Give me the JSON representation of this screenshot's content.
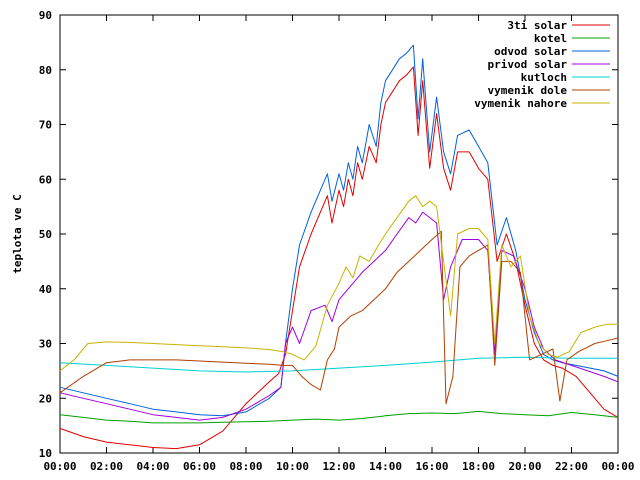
{
  "chart_data": {
    "type": "line",
    "title": "",
    "xlabel": "",
    "ylabel": "teplota ve C",
    "xlim": [
      0,
      24
    ],
    "ylim": [
      10,
      90
    ],
    "grid": false,
    "legend_position": "top-right",
    "x_ticks": [
      "00:00",
      "02:00",
      "04:00",
      "06:00",
      "08:00",
      "10:00",
      "12:00",
      "14:00",
      "16:00",
      "18:00",
      "20:00",
      "22:00",
      "00:00"
    ],
    "y_ticks": [
      10,
      20,
      30,
      40,
      50,
      60,
      70,
      80,
      90
    ],
    "series": [
      {
        "name": "3ti solar",
        "color": "#e00000",
        "points": [
          [
            0,
            14.5
          ],
          [
            1,
            13
          ],
          [
            2,
            12
          ],
          [
            3,
            11.5
          ],
          [
            4,
            11
          ],
          [
            5,
            10.8
          ],
          [
            6,
            11.5
          ],
          [
            7,
            14
          ],
          [
            8,
            19
          ],
          [
            9,
            23
          ],
          [
            9.4,
            24.5
          ],
          [
            9.7,
            28
          ],
          [
            10,
            36
          ],
          [
            10.3,
            44
          ],
          [
            10.8,
            50
          ],
          [
            11.2,
            54
          ],
          [
            11.5,
            57
          ],
          [
            11.7,
            52
          ],
          [
            12,
            58
          ],
          [
            12.2,
            55
          ],
          [
            12.4,
            60
          ],
          [
            12.6,
            57
          ],
          [
            12.8,
            63
          ],
          [
            13,
            60
          ],
          [
            13.3,
            66
          ],
          [
            13.6,
            63
          ],
          [
            13.8,
            70
          ],
          [
            14,
            74
          ],
          [
            14.3,
            76
          ],
          [
            14.6,
            78
          ],
          [
            14.9,
            79
          ],
          [
            15.2,
            80.5
          ],
          [
            15.4,
            68
          ],
          [
            15.6,
            78
          ],
          [
            15.9,
            62
          ],
          [
            16.2,
            72
          ],
          [
            16.5,
            62
          ],
          [
            16.8,
            58
          ],
          [
            17.1,
            65
          ],
          [
            17.6,
            65
          ],
          [
            18,
            62
          ],
          [
            18.4,
            60
          ],
          [
            18.8,
            45
          ],
          [
            19.2,
            50
          ],
          [
            19.6,
            45
          ],
          [
            20,
            37
          ],
          [
            20.4,
            30
          ],
          [
            20.8,
            27
          ],
          [
            21.2,
            26
          ],
          [
            21.6,
            25.5
          ],
          [
            22.2,
            24
          ],
          [
            22.8,
            21
          ],
          [
            23.4,
            18
          ],
          [
            24,
            16.5
          ]
        ]
      },
      {
        "name": "kotel",
        "color": "#00a000",
        "points": [
          [
            0,
            17
          ],
          [
            1,
            16.5
          ],
          [
            2,
            16
          ],
          [
            3,
            15.8
          ],
          [
            4,
            15.5
          ],
          [
            5,
            15.5
          ],
          [
            6,
            15.5
          ],
          [
            7,
            15.6
          ],
          [
            8,
            15.7
          ],
          [
            9,
            15.8
          ],
          [
            10,
            16
          ],
          [
            11,
            16.2
          ],
          [
            12,
            16
          ],
          [
            13,
            16.3
          ],
          [
            14,
            16.8
          ],
          [
            15,
            17.2
          ],
          [
            16,
            17.3
          ],
          [
            17,
            17.2
          ],
          [
            18,
            17.6
          ],
          [
            19,
            17.2
          ],
          [
            20,
            17
          ],
          [
            21,
            16.8
          ],
          [
            22,
            17.4
          ],
          [
            23,
            17
          ],
          [
            24,
            16.5
          ]
        ]
      },
      {
        "name": "odvod solar",
        "color": "#0060e0",
        "points": [
          [
            0,
            22
          ],
          [
            1,
            21
          ],
          [
            2,
            20
          ],
          [
            3,
            19
          ],
          [
            4,
            18
          ],
          [
            5,
            17.5
          ],
          [
            6,
            17
          ],
          [
            7,
            16.8
          ],
          [
            8,
            17.5
          ],
          [
            9,
            20
          ],
          [
            9.5,
            22
          ],
          [
            9.7,
            30
          ],
          [
            10,
            40
          ],
          [
            10.3,
            48
          ],
          [
            10.8,
            54
          ],
          [
            11.2,
            58
          ],
          [
            11.5,
            61
          ],
          [
            11.7,
            56
          ],
          [
            12,
            61
          ],
          [
            12.2,
            58
          ],
          [
            12.4,
            63
          ],
          [
            12.6,
            60
          ],
          [
            12.8,
            66
          ],
          [
            13,
            63
          ],
          [
            13.3,
            70
          ],
          [
            13.6,
            66
          ],
          [
            13.8,
            74
          ],
          [
            14,
            78
          ],
          [
            14.3,
            80
          ],
          [
            14.6,
            82
          ],
          [
            14.9,
            83
          ],
          [
            15.2,
            84.5
          ],
          [
            15.4,
            71
          ],
          [
            15.6,
            82
          ],
          [
            15.9,
            65
          ],
          [
            16.2,
            75
          ],
          [
            16.5,
            65
          ],
          [
            16.8,
            61
          ],
          [
            17.1,
            68
          ],
          [
            17.6,
            69
          ],
          [
            18,
            66
          ],
          [
            18.4,
            63
          ],
          [
            18.8,
            48
          ],
          [
            19.2,
            53
          ],
          [
            19.6,
            47
          ],
          [
            20,
            38
          ],
          [
            20.4,
            32
          ],
          [
            20.8,
            28
          ],
          [
            21.2,
            27
          ],
          [
            21.6,
            26.5
          ],
          [
            22.2,
            26
          ],
          [
            22.8,
            25.5
          ],
          [
            23.4,
            25
          ],
          [
            24,
            24
          ]
        ]
      },
      {
        "name": "privod solar",
        "color": "#a000e0",
        "points": [
          [
            0,
            21
          ],
          [
            1,
            20
          ],
          [
            2,
            19
          ],
          [
            3,
            18
          ],
          [
            4,
            17
          ],
          [
            5,
            16.5
          ],
          [
            6,
            16
          ],
          [
            7,
            16.5
          ],
          [
            8,
            18
          ],
          [
            9,
            20.5
          ],
          [
            9.5,
            22
          ],
          [
            9.7,
            30
          ],
          [
            10,
            33
          ],
          [
            10.3,
            30
          ],
          [
            10.8,
            36
          ],
          [
            11.4,
            37
          ],
          [
            11.7,
            34
          ],
          [
            12,
            38
          ],
          [
            12.4,
            40
          ],
          [
            13,
            43
          ],
          [
            13.5,
            45
          ],
          [
            14,
            47
          ],
          [
            14.5,
            50
          ],
          [
            15,
            53
          ],
          [
            15.3,
            52
          ],
          [
            15.6,
            54
          ],
          [
            15.9,
            53
          ],
          [
            16.2,
            52
          ],
          [
            16.5,
            38
          ],
          [
            16.8,
            44
          ],
          [
            17.3,
            49
          ],
          [
            18,
            49
          ],
          [
            18.4,
            47
          ],
          [
            18.7,
            28
          ],
          [
            19,
            47
          ],
          [
            19.5,
            46
          ],
          [
            20,
            40
          ],
          [
            20.4,
            33
          ],
          [
            20.8,
            29
          ],
          [
            21.3,
            27
          ],
          [
            22,
            26
          ],
          [
            22.7,
            25
          ],
          [
            23.4,
            24
          ],
          [
            24,
            23
          ]
        ]
      },
      {
        "name": "kutloch",
        "color": "#00d0d0",
        "points": [
          [
            0,
            26.5
          ],
          [
            2,
            26
          ],
          [
            4,
            25.5
          ],
          [
            6,
            25
          ],
          [
            8,
            24.8
          ],
          [
            10,
            25
          ],
          [
            12,
            25.5
          ],
          [
            14,
            26
          ],
          [
            16,
            26.6
          ],
          [
            18,
            27.3
          ],
          [
            20,
            27.5
          ],
          [
            22,
            27.3
          ],
          [
            24,
            27.3
          ]
        ]
      },
      {
        "name": "vymenik dole",
        "color": "#b04000",
        "points": [
          [
            0,
            21
          ],
          [
            1,
            24
          ],
          [
            2,
            26.5
          ],
          [
            3,
            27
          ],
          [
            4,
            27
          ],
          [
            5,
            27
          ],
          [
            6,
            26.8
          ],
          [
            7,
            26.6
          ],
          [
            8,
            26.4
          ],
          [
            9,
            26.2
          ],
          [
            9.6,
            26
          ],
          [
            10,
            26
          ],
          [
            10.4,
            24
          ],
          [
            10.8,
            22.5
          ],
          [
            11.2,
            21.5
          ],
          [
            11.5,
            27
          ],
          [
            11.8,
            29
          ],
          [
            12,
            33
          ],
          [
            12.5,
            35
          ],
          [
            13,
            36
          ],
          [
            13.5,
            38
          ],
          [
            14,
            40
          ],
          [
            14.5,
            43
          ],
          [
            15,
            45
          ],
          [
            15.5,
            47
          ],
          [
            16,
            49
          ],
          [
            16.4,
            50.5
          ],
          [
            16.6,
            19
          ],
          [
            16.9,
            24
          ],
          [
            17.2,
            44
          ],
          [
            17.6,
            46
          ],
          [
            18,
            47
          ],
          [
            18.4,
            48
          ],
          [
            18.7,
            26
          ],
          [
            19,
            45
          ],
          [
            19.4,
            45
          ],
          [
            19.8,
            43
          ],
          [
            20.2,
            27
          ],
          [
            20.7,
            28
          ],
          [
            21.2,
            29
          ],
          [
            21.5,
            19.5
          ],
          [
            21.8,
            27
          ],
          [
            22.3,
            28.5
          ],
          [
            23,
            30
          ],
          [
            23.5,
            30.5
          ],
          [
            24,
            31
          ]
        ]
      },
      {
        "name": "vymenik nahore",
        "color": "#c8b400",
        "points": [
          [
            0,
            25
          ],
          [
            0.6,
            27
          ],
          [
            1.2,
            30
          ],
          [
            2,
            30.3
          ],
          [
            3,
            30.2
          ],
          [
            4,
            30
          ],
          [
            5,
            29.8
          ],
          [
            6,
            29.6
          ],
          [
            7,
            29.4
          ],
          [
            8,
            29.2
          ],
          [
            9,
            28.9
          ],
          [
            9.6,
            28.5
          ],
          [
            10,
            28
          ],
          [
            10.5,
            27
          ],
          [
            11,
            29.5
          ],
          [
            11.5,
            37
          ],
          [
            12,
            41
          ],
          [
            12.3,
            44
          ],
          [
            12.6,
            42
          ],
          [
            12.9,
            46
          ],
          [
            13.3,
            45
          ],
          [
            13.7,
            48
          ],
          [
            14,
            50
          ],
          [
            14.5,
            53
          ],
          [
            15,
            56
          ],
          [
            15.3,
            57
          ],
          [
            15.6,
            55
          ],
          [
            15.9,
            56
          ],
          [
            16.2,
            55
          ],
          [
            16.5,
            45
          ],
          [
            16.8,
            35
          ],
          [
            17.1,
            50
          ],
          [
            17.6,
            51
          ],
          [
            18,
            51
          ],
          [
            18.4,
            49
          ],
          [
            18.7,
            30
          ],
          [
            19,
            48
          ],
          [
            19.4,
            44
          ],
          [
            19.8,
            46
          ],
          [
            20.2,
            35
          ],
          [
            20.6,
            30
          ],
          [
            21,
            28
          ],
          [
            21.4,
            27.5
          ],
          [
            21.9,
            28.5
          ],
          [
            22.4,
            32
          ],
          [
            23,
            33
          ],
          [
            23.5,
            33.5
          ],
          [
            24,
            33.5
          ]
        ]
      }
    ]
  }
}
